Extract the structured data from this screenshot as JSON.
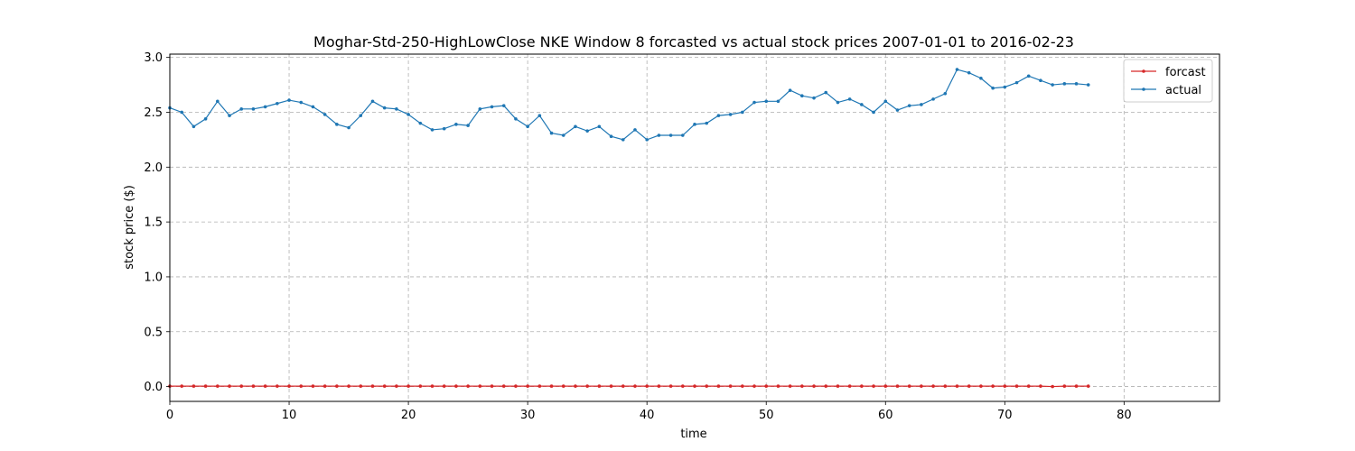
{
  "chart_data": {
    "type": "line",
    "title": "Moghar-Std-250-HighLowClose NKE Window 8 forcasted vs actual stock prices 2007-01-01 to 2016-02-23",
    "xlabel": "time",
    "ylabel": "stock price ($)",
    "xlim": [
      0,
      88
    ],
    "ylim": [
      -0.135,
      3.03
    ],
    "xticks": [
      0,
      10,
      20,
      30,
      40,
      50,
      60,
      70,
      80
    ],
    "yticks": [
      0.0,
      0.5,
      1.0,
      1.5,
      2.0,
      2.5,
      3.0
    ],
    "xtick_labels": [
      "0",
      "10",
      "20",
      "30",
      "40",
      "50",
      "60",
      "70",
      "80"
    ],
    "ytick_labels": [
      "0.0",
      "0.5",
      "1.0",
      "1.5",
      "2.0",
      "2.5",
      "3.0"
    ],
    "grid": true,
    "legend_position": "top-right",
    "series": [
      {
        "name": "forcast",
        "color": "#d62728",
        "values": [
          0.004,
          0.004,
          0.004,
          0.004,
          0.004,
          0.004,
          0.004,
          0.004,
          0.004,
          0.004,
          0.004,
          0.004,
          0.004,
          0.004,
          0.004,
          0.004,
          0.004,
          0.004,
          0.004,
          0.004,
          0.004,
          0.004,
          0.004,
          0.004,
          0.004,
          0.004,
          0.004,
          0.004,
          0.004,
          0.004,
          0.004,
          0.004,
          0.004,
          0.004,
          0.004,
          0.004,
          0.004,
          0.004,
          0.004,
          0.004,
          0.004,
          0.004,
          0.004,
          0.004,
          0.004,
          0.004,
          0.004,
          0.004,
          0.004,
          0.004,
          0.004,
          0.004,
          0.004,
          0.004,
          0.004,
          0.004,
          0.004,
          0.004,
          0.004,
          0.004,
          0.004,
          0.004,
          0.004,
          0.004,
          0.004,
          0.004,
          0.004,
          0.004,
          0.004,
          0.004,
          0.004,
          0.004,
          0.004,
          0.004,
          0.0,
          0.004,
          0.004,
          0.004
        ]
      },
      {
        "name": "actual",
        "color": "#1f77b4",
        "values": [
          2.54,
          2.5,
          2.37,
          2.44,
          2.6,
          2.47,
          2.53,
          2.53,
          2.55,
          2.58,
          2.61,
          2.59,
          2.55,
          2.48,
          2.39,
          2.36,
          2.47,
          2.6,
          2.54,
          2.53,
          2.48,
          2.4,
          2.34,
          2.35,
          2.39,
          2.38,
          2.53,
          2.55,
          2.56,
          2.44,
          2.37,
          2.47,
          2.31,
          2.29,
          2.37,
          2.33,
          2.37,
          2.28,
          2.25,
          2.34,
          2.25,
          2.29,
          2.29,
          2.29,
          2.39,
          2.4,
          2.47,
          2.48,
          2.5,
          2.59,
          2.6,
          2.6,
          2.7,
          2.65,
          2.63,
          2.68,
          2.59,
          2.62,
          2.57,
          2.5,
          2.6,
          2.52,
          2.56,
          2.57,
          2.62,
          2.67,
          2.89,
          2.86,
          2.81,
          2.72,
          2.73,
          2.77,
          2.83,
          2.79,
          2.75,
          2.76,
          2.76,
          2.75
        ]
      }
    ]
  }
}
